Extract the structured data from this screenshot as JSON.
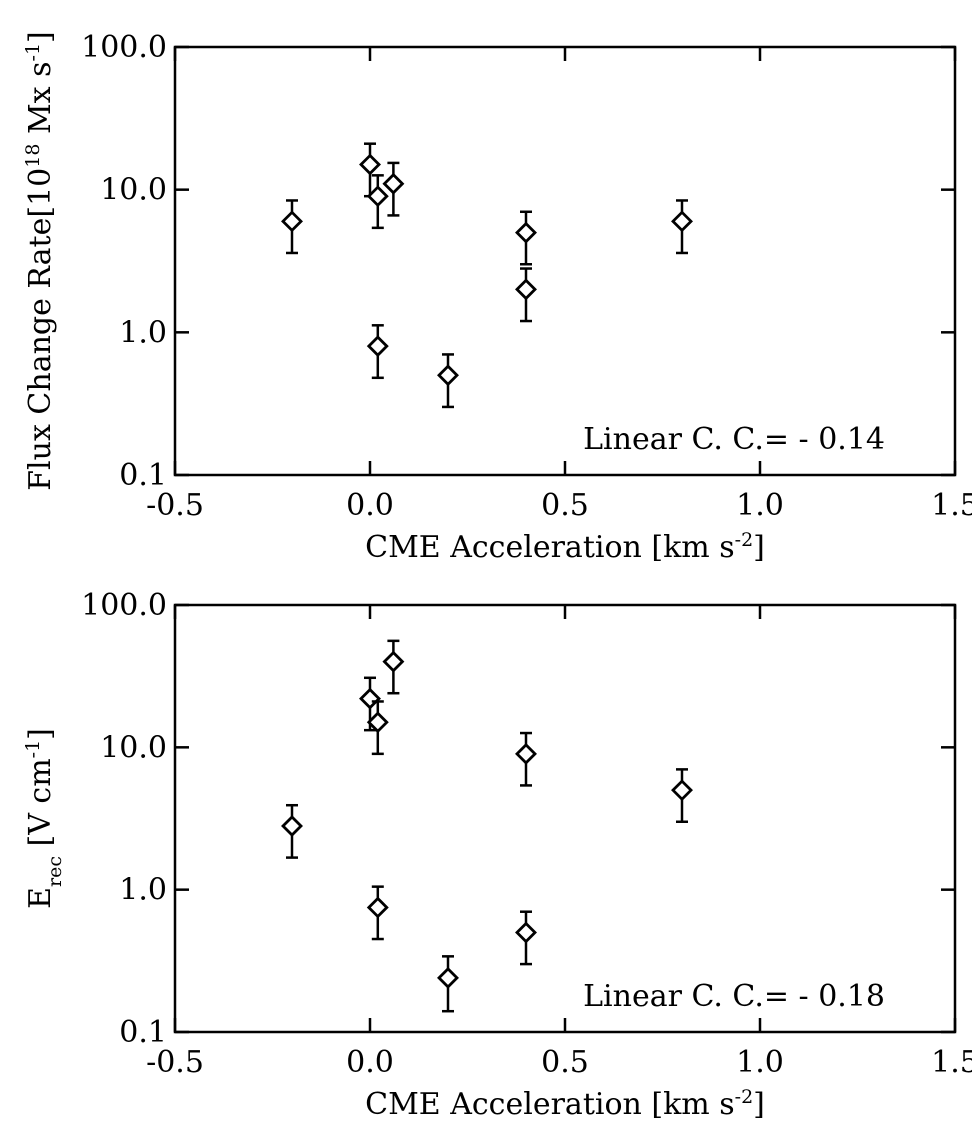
{
  "chart_data": [
    {
      "type": "scatter",
      "log_y": true,
      "color": "#000000",
      "xlabel": [
        {
          "text": "CME Acceleration [km s"
        },
        {
          "text": "-2",
          "sup": true
        },
        {
          "text": "]"
        }
      ],
      "ylabel": [
        {
          "text": "Flux Change Rate[10"
        },
        {
          "text": "18",
          "sup": true
        },
        {
          "text": " Mx s"
        },
        {
          "text": "-1",
          "sup": true
        },
        {
          "text": "]"
        }
      ],
      "annotation": "Linear C. C.= - 0.14",
      "x": [
        -0.2,
        0.0,
        0.02,
        0.06,
        0.02,
        0.2,
        0.4,
        0.4,
        0.8
      ],
      "y": [
        6,
        15,
        9,
        11,
        0.8,
        0.5,
        5,
        2,
        6
      ],
      "yerr": [
        2.4,
        6,
        3.6,
        4.4,
        0.32,
        0.2,
        2,
        0.8,
        2.4
      ],
      "xlim": [
        -0.5,
        1.5
      ],
      "xticks": [
        -0.5,
        {
          "value": 0,
          "label": "0.0"
        },
        0.5,
        {
          "value": 1,
          "label": "1.0"
        },
        1.5
      ],
      "ylim": [
        0.1,
        100
      ],
      "yticks": [
        0.1,
        {
          "value": 1,
          "label": "1.0"
        },
        {
          "value": 10,
          "label": "10.0"
        },
        {
          "value": 100,
          "label": "100.0"
        }
      ]
    },
    {
      "type": "scatter",
      "log_y": true,
      "color": "#000000",
      "xlabel": [
        {
          "text": "CME Acceleration [km s"
        },
        {
          "text": "-2",
          "sup": true
        },
        {
          "text": "]"
        }
      ],
      "ylabel": [
        {
          "text": "E"
        },
        {
          "text": "rec",
          "sub": true
        },
        {
          "text": " [V cm"
        },
        {
          "text": "-1",
          "sup": true
        },
        {
          "text": "]"
        }
      ],
      "annotation": "Linear C. C.= - 0.18",
      "x": [
        -0.2,
        0.0,
        0.02,
        0.06,
        0.02,
        0.2,
        0.4,
        0.4,
        0.8
      ],
      "y": [
        2.8,
        22,
        15,
        40,
        0.75,
        0.24,
        9,
        0.5,
        5
      ],
      "yerr": [
        1.12,
        8.8,
        6,
        16,
        0.3,
        0.1,
        3.6,
        0.2,
        2
      ],
      "xlim": [
        -0.5,
        1.5
      ],
      "xticks": [
        -0.5,
        {
          "value": 0,
          "label": "0.0"
        },
        0.5,
        {
          "value": 1,
          "label": "1.0"
        },
        1.5
      ],
      "ylim": [
        0.1,
        100
      ],
      "yticks": [
        0.1,
        {
          "value": 1,
          "label": "1.0"
        },
        {
          "value": 10,
          "label": "10.0"
        },
        {
          "value": 100,
          "label": "100.0"
        }
      ]
    }
  ]
}
